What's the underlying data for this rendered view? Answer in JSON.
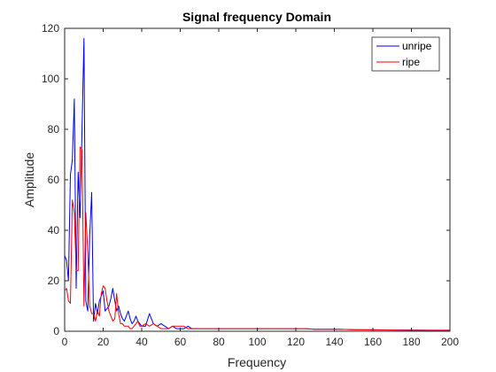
{
  "chart_data": {
    "type": "line",
    "title": "Signal frequency Domain",
    "xlabel": "Frequency",
    "ylabel": "Amplitude",
    "xlim": [
      0,
      200
    ],
    "ylim": [
      0,
      120
    ],
    "xticks": [
      0,
      20,
      40,
      60,
      80,
      100,
      120,
      140,
      160,
      180,
      200
    ],
    "yticks": [
      0,
      20,
      40,
      60,
      80,
      100,
      120
    ],
    "grid": false,
    "legend_position": "top-right",
    "series": [
      {
        "name": "unripe",
        "color": "#0000ff",
        "x": [
          0,
          1,
          2,
          3,
          4,
          5,
          6,
          7,
          8,
          9,
          10,
          11,
          12,
          13,
          14,
          15,
          16,
          17,
          18,
          19,
          20,
          21,
          22,
          23,
          24,
          25,
          26,
          27,
          28,
          29,
          30,
          31,
          32,
          33,
          34,
          35,
          36,
          37,
          38,
          39,
          40,
          42,
          44,
          46,
          48,
          50,
          52,
          54,
          56,
          58,
          60,
          62,
          64,
          66,
          68,
          70,
          75,
          80,
          85,
          90,
          95,
          100,
          105,
          110,
          115,
          120,
          125,
          130,
          135,
          140,
          150,
          160,
          170,
          180,
          190,
          200
        ],
        "y": [
          30,
          28,
          20,
          62,
          68,
          92,
          17,
          63,
          45,
          80,
          116,
          12,
          8,
          38,
          55,
          4,
          11,
          7,
          12,
          14,
          16,
          8,
          9,
          10,
          13,
          17,
          12,
          8,
          10,
          7,
          5,
          4,
          6,
          8,
          5,
          3,
          4,
          6,
          4,
          3,
          2,
          2,
          7,
          3,
          2,
          3,
          2,
          1,
          2,
          1,
          1,
          1,
          2,
          1,
          1,
          1,
          1,
          1,
          1,
          1,
          1,
          1,
          1,
          1,
          1,
          1,
          1,
          0.8,
          0.8,
          0.8,
          0.6,
          0.6,
          0.5,
          0.5,
          0.4,
          0.4
        ]
      },
      {
        "name": "ripe",
        "color": "#ff0000",
        "x": [
          0,
          1,
          2,
          3,
          4,
          5,
          6,
          7,
          8,
          9,
          10,
          11,
          12,
          13,
          14,
          15,
          16,
          17,
          18,
          19,
          20,
          21,
          22,
          23,
          24,
          25,
          26,
          27,
          28,
          29,
          30,
          31,
          32,
          33,
          34,
          35,
          36,
          37,
          38,
          39,
          40,
          42,
          44,
          46,
          48,
          50,
          52,
          54,
          56,
          58,
          60,
          62,
          64,
          66,
          68,
          70,
          75,
          80,
          85,
          90,
          95,
          100,
          105,
          110,
          115,
          120,
          125,
          130,
          135,
          140,
          150,
          160,
          170,
          180,
          190,
          200
        ],
        "y": [
          16,
          17,
          12,
          11,
          52,
          47,
          24,
          24,
          73,
          72,
          10,
          47,
          31,
          10,
          7,
          7,
          4,
          8,
          6,
          15,
          18,
          17,
          12,
          8,
          6,
          4,
          5,
          15,
          7,
          3,
          3,
          2,
          2,
          2,
          1,
          1,
          2,
          3,
          4,
          2,
          2,
          3,
          2,
          3,
          2,
          1,
          1,
          1,
          2,
          2,
          2,
          2,
          1,
          1,
          1,
          1,
          1,
          1,
          1,
          1,
          1,
          1,
          1,
          1,
          1,
          1,
          1,
          0.8,
          0.8,
          0.8,
          0.6,
          0.5,
          0.5,
          0.4,
          0.4,
          0.4
        ]
      }
    ]
  }
}
